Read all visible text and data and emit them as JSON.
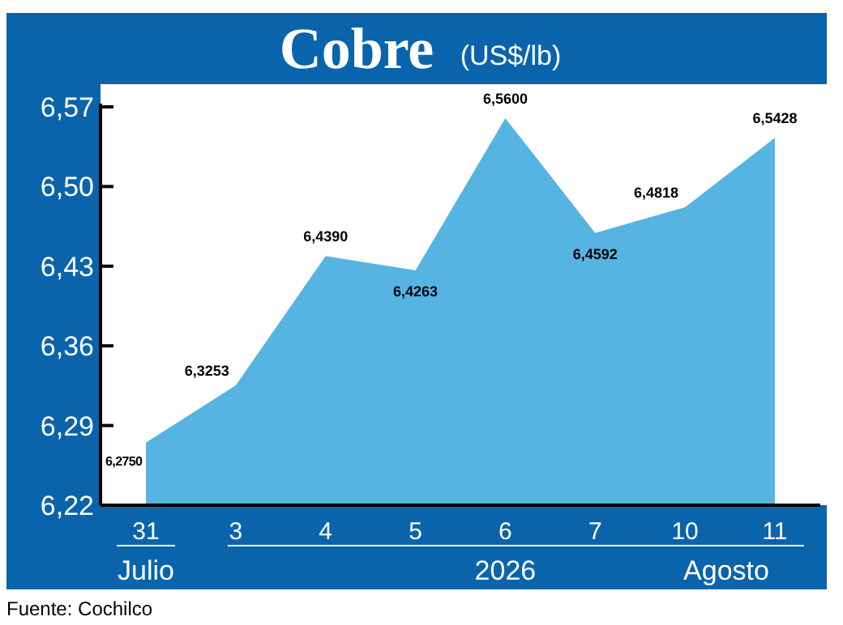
{
  "chart_data": {
    "type": "area",
    "title": "Cobre",
    "subtitle": "(US$/lb)",
    "categories": [
      "31",
      "3",
      "4",
      "5",
      "6",
      "7",
      "10",
      "11"
    ],
    "values": [
      6.275,
      6.3253,
      6.439,
      6.4263,
      6.56,
      6.4592,
      6.4818,
      6.5428
    ],
    "value_labels": [
      "6,2750",
      "6,3253",
      "6,4390",
      "6,4263",
      "6,5600",
      "6,4592",
      "6,4818",
      "6,5428"
    ],
    "color": "#56b4e3",
    "ylim": [
      6.22,
      6.57
    ],
    "yticks": [
      {
        "value": 6.22,
        "label": "6,22"
      },
      {
        "value": 6.29,
        "label": "6,29"
      },
      {
        "value": 6.36,
        "label": "6,36"
      },
      {
        "value": 6.43,
        "label": "6,43"
      },
      {
        "value": 6.5,
        "label": "6,50"
      },
      {
        "value": 6.57,
        "label": "6,57"
      }
    ],
    "grid": false,
    "annotations": [
      "Julio",
      "2026",
      "Agosto",
      "Fuente: Cochilco"
    ]
  }
}
